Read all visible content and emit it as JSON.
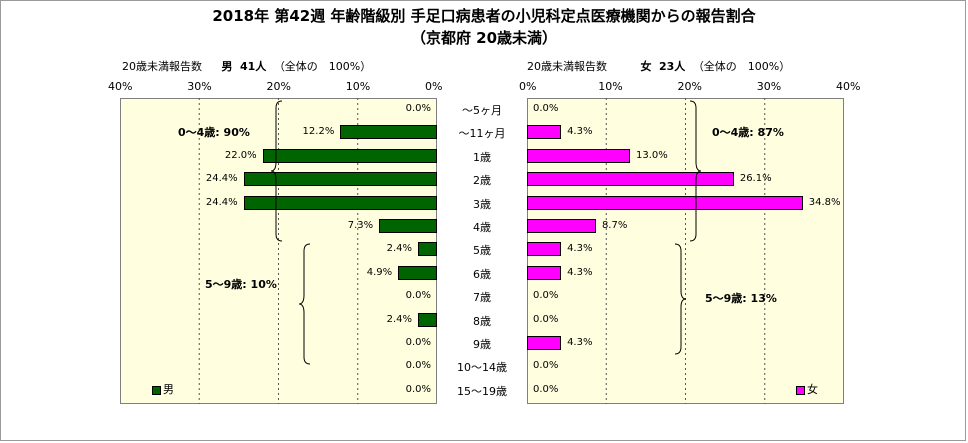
{
  "title_line1": "2018年 第42週 年齢階級別 手足口病患者の小児科定点医療機関からの報告割合",
  "title_line2": "（京都府 20歳未満）",
  "male_header": {
    "label": "20歳未満報告数",
    "sex": "男",
    "count": "41人",
    "note": "（全体の　100%）"
  },
  "female_header": {
    "label": "20歳未満報告数",
    "sex": "女",
    "count": "23人",
    "note": "（全体の　100%）"
  },
  "left_ticks": [
    "40%",
    "30%",
    "20%",
    "10%",
    "0%"
  ],
  "right_ticks": [
    "0%",
    "10%",
    "20%",
    "30%",
    "40%"
  ],
  "summaries": {
    "male_0_4": "0～4歳: 90%",
    "male_5_9": "5～9歳: 10%",
    "female_0_4": "0～4歳: 87%",
    "female_5_9": "5～9歳: 13%"
  },
  "legend": {
    "male": "男",
    "female": "女"
  },
  "colors": {
    "male": "#006400",
    "female": "#ff00ff",
    "plot_bg": "#ffffe0"
  },
  "chart_data": {
    "type": "bar",
    "orientation": "horizontal",
    "layout": "population-pyramid",
    "categories": [
      "～5ヶ月",
      "～11ヶ月",
      "1歳",
      "2歳",
      "3歳",
      "4歳",
      "5歳",
      "6歳",
      "7歳",
      "8歳",
      "9歳",
      "10～14歳",
      "15～19歳"
    ],
    "series": [
      {
        "name": "男",
        "values": [
          0.0,
          12.2,
          22.0,
          24.4,
          24.4,
          7.3,
          2.4,
          4.9,
          0.0,
          2.4,
          0.0,
          0.0,
          0.0
        ],
        "labels": [
          "0.0%",
          "12.2%",
          "22.0%",
          "24.4%",
          "24.4%",
          "7.3%",
          "2.4%",
          "4.9%",
          "0.0%",
          "2.4%",
          "0.0%",
          "0.0%",
          "0.0%"
        ]
      },
      {
        "name": "女",
        "values": [
          0.0,
          4.3,
          13.0,
          26.1,
          34.8,
          8.7,
          4.3,
          4.3,
          0.0,
          0.0,
          4.3,
          0.0,
          0.0
        ],
        "labels": [
          "0.0%",
          "4.3%",
          "13.0%",
          "26.1%",
          "34.8%",
          "8.7%",
          "4.3%",
          "4.3%",
          "0.0%",
          "0.0%",
          "4.3%",
          "0.0%",
          "0.0%"
        ]
      }
    ],
    "xlim": [
      0,
      40
    ],
    "grid": true,
    "legend_position": "bottom"
  }
}
